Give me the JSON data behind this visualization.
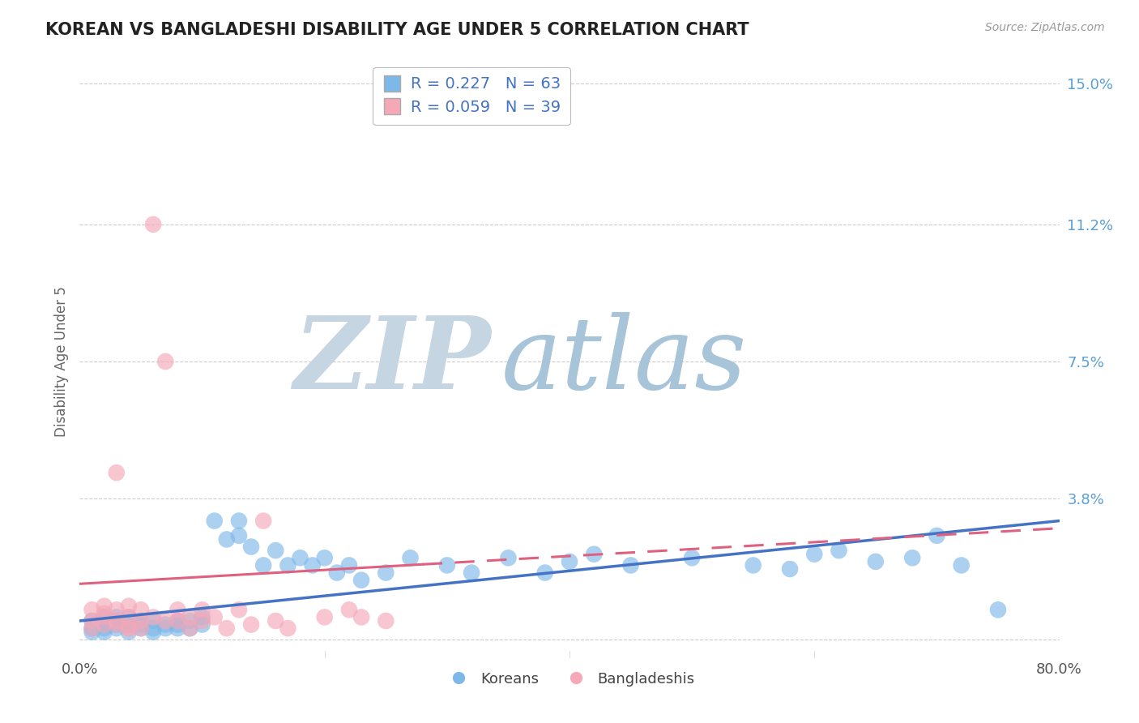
{
  "title": "KOREAN VS BANGLADESHI DISABILITY AGE UNDER 5 CORRELATION CHART",
  "source": "Source: ZipAtlas.com",
  "ylabel": "Disability Age Under 5",
  "xlabel": "",
  "xlim": [
    0.0,
    0.8
  ],
  "ylim": [
    -0.005,
    0.155
  ],
  "yticks": [
    0.0,
    0.038,
    0.075,
    0.112,
    0.15
  ],
  "ytick_labels": [
    "",
    "3.8%",
    "7.5%",
    "11.2%",
    "15.0%"
  ],
  "xtick_labels": [
    "0.0%",
    "80.0%"
  ],
  "grid_color": "#cccccc",
  "korean_color": "#7eb8e8",
  "bangladeshi_color": "#f4a8b8",
  "korean_R": 0.227,
  "korean_N": 63,
  "bangladeshi_R": 0.059,
  "bangladeshi_N": 39,
  "watermark_zip": "ZIP",
  "watermark_atlas": "atlas",
  "watermark_zip_color": "#c8d8e8",
  "watermark_atlas_color": "#b8cfe0",
  "legend_label_korean": "Koreans",
  "legend_label_bangladeshi": "Bangladeshis",
  "korean_line_color": "#4472C4",
  "bangladeshi_line_color": "#E06080",
  "right_label_color": "#5a9fd4",
  "korean_x": [
    0.01,
    0.01,
    0.01,
    0.02,
    0.02,
    0.02,
    0.02,
    0.02,
    0.03,
    0.03,
    0.03,
    0.03,
    0.04,
    0.04,
    0.04,
    0.05,
    0.05,
    0.05,
    0.06,
    0.06,
    0.06,
    0.07,
    0.07,
    0.08,
    0.08,
    0.08,
    0.09,
    0.09,
    0.1,
    0.1,
    0.11,
    0.12,
    0.13,
    0.13,
    0.14,
    0.15,
    0.16,
    0.17,
    0.18,
    0.19,
    0.2,
    0.21,
    0.22,
    0.23,
    0.25,
    0.27,
    0.3,
    0.32,
    0.35,
    0.38,
    0.4,
    0.42,
    0.45,
    0.5,
    0.55,
    0.58,
    0.6,
    0.62,
    0.65,
    0.68,
    0.7,
    0.72,
    0.75
  ],
  "korean_y": [
    0.003,
    0.005,
    0.002,
    0.004,
    0.006,
    0.003,
    0.005,
    0.002,
    0.004,
    0.006,
    0.003,
    0.005,
    0.004,
    0.002,
    0.006,
    0.003,
    0.005,
    0.004,
    0.003,
    0.005,
    0.002,
    0.004,
    0.003,
    0.005,
    0.003,
    0.004,
    0.003,
    0.005,
    0.004,
    0.006,
    0.032,
    0.027,
    0.032,
    0.028,
    0.025,
    0.02,
    0.024,
    0.02,
    0.022,
    0.02,
    0.022,
    0.018,
    0.02,
    0.016,
    0.018,
    0.022,
    0.02,
    0.018,
    0.022,
    0.018,
    0.021,
    0.023,
    0.02,
    0.022,
    0.02,
    0.019,
    0.023,
    0.024,
    0.021,
    0.022,
    0.028,
    0.02,
    0.008
  ],
  "bangladeshi_x": [
    0.01,
    0.01,
    0.01,
    0.02,
    0.02,
    0.02,
    0.02,
    0.03,
    0.03,
    0.03,
    0.04,
    0.04,
    0.04,
    0.05,
    0.05,
    0.05,
    0.06,
    0.06,
    0.07,
    0.07,
    0.08,
    0.08,
    0.09,
    0.09,
    0.1,
    0.1,
    0.11,
    0.12,
    0.13,
    0.14,
    0.15,
    0.16,
    0.17,
    0.2,
    0.22,
    0.23,
    0.25,
    0.03,
    0.04
  ],
  "bangladeshi_y": [
    0.005,
    0.008,
    0.003,
    0.006,
    0.009,
    0.004,
    0.007,
    0.005,
    0.008,
    0.004,
    0.006,
    0.009,
    0.003,
    0.005,
    0.008,
    0.003,
    0.006,
    0.112,
    0.005,
    0.075,
    0.008,
    0.005,
    0.006,
    0.003,
    0.008,
    0.005,
    0.006,
    0.003,
    0.008,
    0.004,
    0.032,
    0.005,
    0.003,
    0.006,
    0.008,
    0.006,
    0.005,
    0.045,
    0.003
  ],
  "korean_trend_x0": 0.0,
  "korean_trend_y0": 0.005,
  "korean_trend_x1": 0.8,
  "korean_trend_y1": 0.032,
  "bangladeshi_trend_x0": 0.0,
  "bangladeshi_trend_y0": 0.015,
  "bangladeshi_trend_x1": 0.8,
  "bangladeshi_trend_y1": 0.03
}
